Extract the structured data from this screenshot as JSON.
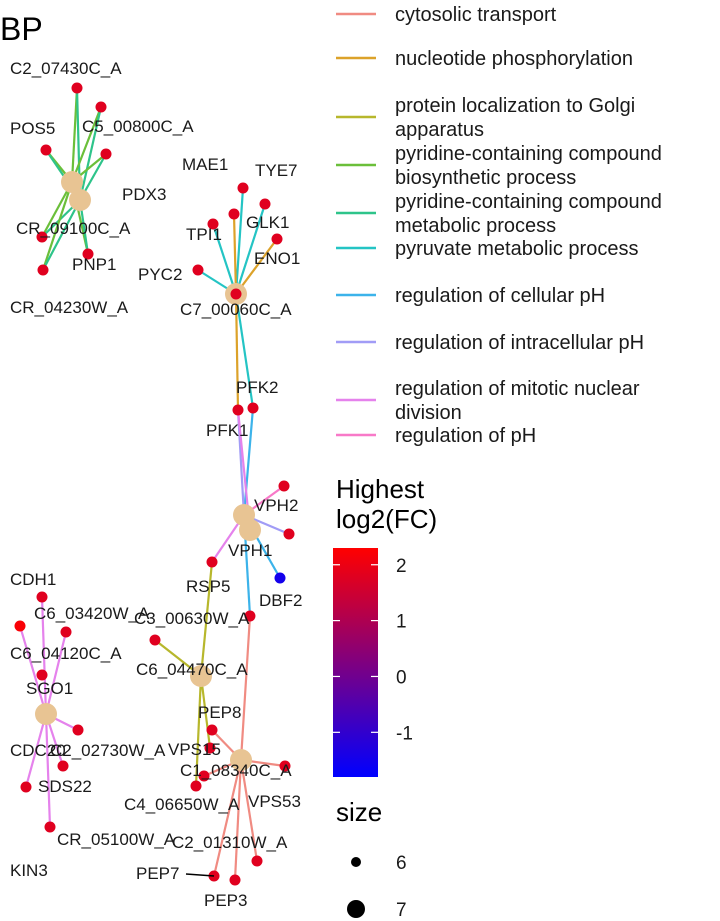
{
  "title": "BP",
  "categories": [
    {
      "id": "ct",
      "label": "cytosolic transport",
      "color": "#f08b82"
    },
    {
      "id": "np",
      "label": "nucleotide phosphorylation",
      "color": "#dca22a"
    },
    {
      "id": "plg",
      "label": "protein localization to Golgi\napparatus",
      "color": "#b7b72c"
    },
    {
      "id": "pcb",
      "label": "pyridine-containing compound\nbiosynthetic process",
      "color": "#6bbf3a"
    },
    {
      "id": "pcm",
      "label": "pyridine-containing compound\nmetabolic process",
      "color": "#2ec48a"
    },
    {
      "id": "pmp",
      "label": "pyruvate metabolic process",
      "color": "#24c4c4"
    },
    {
      "id": "rcp",
      "label": "regulation of cellular pH",
      "color": "#3cb3ea"
    },
    {
      "id": "rip",
      "label": "regulation of intracellular pH",
      "color": "#a19cf6"
    },
    {
      "id": "rmn",
      "label": "regulation of mitotic nuclear\ndivision",
      "color": "#e582ec"
    },
    {
      "id": "rph",
      "label": "regulation of pH",
      "color": "#f879c8"
    }
  ],
  "colorbar": {
    "title": "Highest\nlog2(FC)",
    "min": -1.8,
    "max": 2.3,
    "ticks": [
      "2",
      "1",
      "0",
      "-1"
    ],
    "tick_values": [
      2,
      1,
      0,
      -1
    ],
    "colors": {
      "high": "#ff0000",
      "low": "#0000ff"
    }
  },
  "size_legend": {
    "title": "size",
    "entries": [
      {
        "label": "6",
        "value": 6
      },
      {
        "label": "7",
        "value": 7
      }
    ]
  },
  "network": {
    "gene_color": "#e8c493",
    "genes": [
      {
        "id": "C2_07430C_A",
        "fc": 1.8
      },
      {
        "id": "C5_00800C_A",
        "fc": 1.8
      },
      {
        "id": "POS5",
        "fc": 1.8
      },
      {
        "id": "PDX3",
        "fc": 1.8
      },
      {
        "id": "CR_09100C_A",
        "fc": 1.8
      },
      {
        "id": "PNP1",
        "fc": 1.8
      },
      {
        "id": "CR_04230W_A",
        "fc": 1.8
      },
      {
        "id": "MAE1",
        "fc": 1.8
      },
      {
        "id": "TYE7",
        "fc": 1.8
      },
      {
        "id": "GLK1",
        "fc": 1.8
      },
      {
        "id": "TPI1",
        "fc": 1.8
      },
      {
        "id": "ENO1",
        "fc": 1.8
      },
      {
        "id": "PYC2",
        "fc": 1.8
      },
      {
        "id": "C7_00060C_A",
        "fc": 1.8
      },
      {
        "id": "PFK2",
        "fc": 1.8
      },
      {
        "id": "PFK1",
        "fc": 1.8
      },
      {
        "id": "VPH2",
        "fc": 1.8
      },
      {
        "id": "VPH1",
        "fc": 1.8
      },
      {
        "id": "RSP5",
        "fc": 1.8
      },
      {
        "id": "DBF2",
        "fc": -1.5
      },
      {
        "id": "C3_00630W_A",
        "fc": 1.8
      },
      {
        "id": "C6_04470C_A",
        "fc": 1.8
      },
      {
        "id": "PEP8",
        "fc": 1.8
      },
      {
        "id": "VPS15",
        "fc": 1.8
      },
      {
        "id": "C1_08340C_A",
        "fc": 1.8
      },
      {
        "id": "C4_06650W_A",
        "fc": 1.8
      },
      {
        "id": "VPS53",
        "fc": 1.8
      },
      {
        "id": "C2_01310W_A",
        "fc": 1.8
      },
      {
        "id": "PEP7",
        "fc": 1.8
      },
      {
        "id": "PEP3",
        "fc": 1.8
      },
      {
        "id": "CDH1",
        "fc": 1.8
      },
      {
        "id": "C6_03420W_A",
        "fc": 1.8
      },
      {
        "id": "C6_04120C_A",
        "fc": 2.2
      },
      {
        "id": "SGO1",
        "fc": 1.8
      },
      {
        "id": "CDC20",
        "fc": 1.8
      },
      {
        "id": "C2_02730W_A",
        "fc": 1.8
      },
      {
        "id": "SDS22",
        "fc": 1.8
      },
      {
        "id": "CR_05100W_A",
        "fc": 1.8
      },
      {
        "id": "KIN3",
        "fc": 1.8
      }
    ]
  }
}
